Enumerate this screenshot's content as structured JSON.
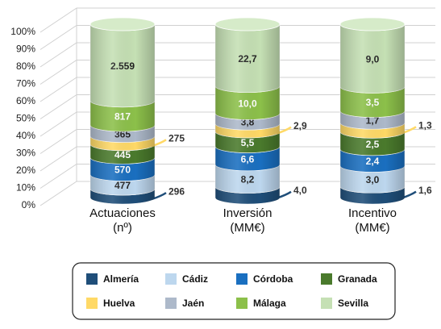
{
  "chart_data": {
    "type": "stacked-cylinder-100",
    "categories": [
      "Actuaciones (nº)",
      "Inversión (MM€)",
      "Incentivo (MM€)"
    ],
    "series": [
      {
        "name": "Almería",
        "color": "#1f4e79",
        "values": [
          296,
          4.0,
          1.6
        ],
        "value_labels": [
          "296",
          "4,0",
          "1,6"
        ]
      },
      {
        "name": "Cádiz",
        "color": "#bdd7ee",
        "values": [
          477,
          8.2,
          3.0
        ],
        "value_labels": [
          "477",
          "8,2",
          "3,0"
        ]
      },
      {
        "name": "Córdoba",
        "color": "#1a6fc0",
        "values": [
          570,
          6.6,
          2.4
        ],
        "value_labels": [
          "570",
          "6,6",
          "2,4"
        ]
      },
      {
        "name": "Granada",
        "color": "#4a7a2c",
        "values": [
          445,
          5.5,
          2.5
        ],
        "value_labels": [
          "445",
          "5,5",
          "2,5"
        ]
      },
      {
        "name": "Huelva",
        "color": "#ffd966",
        "values": [
          275,
          2.9,
          1.3
        ],
        "value_labels": [
          "275",
          "2,9",
          "1,3"
        ]
      },
      {
        "name": "Jaén",
        "color": "#adb9ca",
        "values": [
          365,
          3.8,
          1.7
        ],
        "value_labels": [
          "365",
          "3,8",
          "1,7"
        ]
      },
      {
        "name": "Málaga",
        "color": "#8cc04a",
        "values": [
          817,
          10.0,
          3.5
        ],
        "value_labels": [
          "817",
          "10,0",
          "3,5"
        ]
      },
      {
        "name": "Sevilla",
        "color": "#c5e0b4",
        "values": [
          2559,
          22.7,
          9.0
        ],
        "value_labels": [
          "2.559",
          "22,7",
          "9,0"
        ]
      }
    ],
    "ylim": [
      0,
      100
    ],
    "yticks": [
      {
        "value": 0,
        "label": "0%"
      },
      {
        "value": 10,
        "label": "10%"
      },
      {
        "value": 20,
        "label": "20%"
      },
      {
        "value": 30,
        "label": "30%"
      },
      {
        "value": 40,
        "label": "40%"
      },
      {
        "value": 50,
        "label": "50%"
      },
      {
        "value": 60,
        "label": "60%"
      },
      {
        "value": 70,
        "label": "70%"
      },
      {
        "value": 80,
        "label": "80%"
      },
      {
        "value": 90,
        "label": "90%"
      },
      {
        "value": 100,
        "label": "100%"
      }
    ],
    "grid": true,
    "legend": "bottom"
  }
}
